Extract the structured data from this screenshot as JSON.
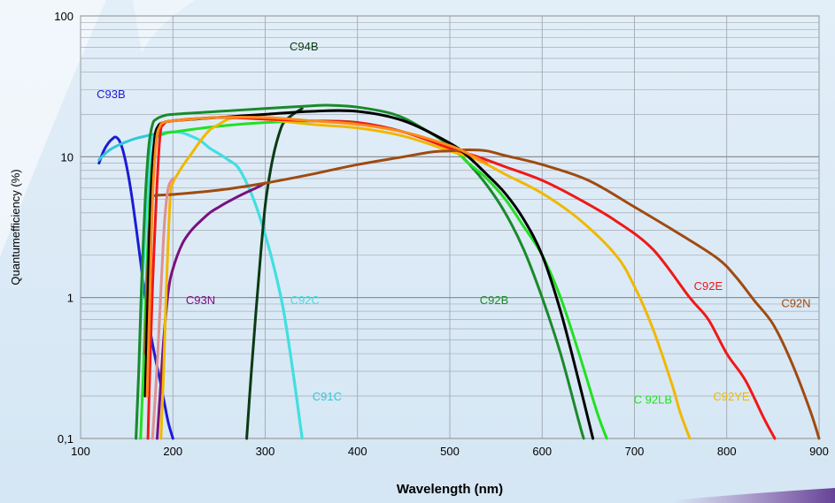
{
  "chart_data": {
    "type": "line",
    "xlabel": "Wavelength (nm)",
    "ylabel": "Quantumefficiency (%)",
    "xlim": [
      100,
      900
    ],
    "ylim": [
      0.1,
      100
    ],
    "yscale": "log",
    "grid": true,
    "x_ticks": [
      "100",
      "200",
      "300",
      "400",
      "500",
      "600",
      "700",
      "800",
      "900"
    ],
    "y_ticks": [
      "0,1",
      "1",
      "10",
      "100"
    ],
    "series": [
      {
        "name": "C93B",
        "color": "#1c1cd4",
        "label_pos": [
          133,
          28
        ],
        "x": [
          120,
          125,
          130,
          135,
          138,
          142,
          146,
          150,
          155,
          160,
          165,
          170,
          175,
          180,
          185,
          190,
          195,
          200
        ],
        "y": [
          9,
          11,
          12.5,
          13.5,
          13.8,
          13,
          11,
          8.5,
          5.5,
          3.2,
          1.8,
          1.0,
          0.6,
          0.4,
          0.28,
          0.19,
          0.13,
          0.1
        ]
      },
      {
        "name": "C91C",
        "color": "#30c8d8",
        "label_pos": [
          367,
          0.2
        ],
        "x": [
          120,
          130,
          140,
          150,
          160,
          170,
          180,
          190,
          200,
          210,
          220,
          230,
          240,
          250,
          260,
          270,
          280,
          290,
          300,
          310,
          320,
          330,
          340
        ],
        "y": [
          9.5,
          11,
          12,
          12.8,
          13.5,
          14,
          14.5,
          14.8,
          15,
          14.8,
          14,
          13,
          11.5,
          10.5,
          9.5,
          8.5,
          6.5,
          4.5,
          2.8,
          1.6,
          0.8,
          0.3,
          0.1
        ]
      },
      {
        "name": "C92C",
        "color": "#40e0e0",
        "label_pos": [
          343,
          0.97
        ],
        "x": [
          160,
          163,
          167,
          172,
          176,
          180,
          185,
          190,
          200,
          210,
          220,
          230,
          240,
          250,
          260,
          270,
          280,
          290,
          300,
          310,
          320,
          330,
          340
        ],
        "y": [
          0.1,
          0.3,
          1.2,
          5,
          12,
          14,
          14.5,
          14.8,
          15,
          14.8,
          14,
          13,
          11.5,
          10.5,
          9.5,
          8.5,
          6.5,
          4.5,
          2.8,
          1.6,
          0.8,
          0.3,
          0.1
        ]
      },
      {
        "name": "C93N",
        "color": "#7a1080",
        "label_pos": [
          230,
          0.97
        ],
        "x": [
          183,
          186,
          190,
          195,
          200,
          210,
          220,
          230,
          240,
          250,
          260,
          270,
          280,
          290,
          300
        ],
        "y": [
          0.1,
          0.2,
          0.5,
          1.1,
          1.6,
          2.4,
          3.0,
          3.5,
          4.0,
          4.4,
          4.8,
          5.2,
          5.6,
          6.0,
          6.5
        ]
      },
      {
        "name": "C94B",
        "color": "#0a3a14",
        "label_pos": [
          342,
          61
        ],
        "x": [
          280,
          285,
          290,
          295,
          300,
          305,
          310,
          315,
          320,
          330,
          340
        ],
        "y": [
          0.1,
          0.3,
          0.8,
          2,
          4.5,
          7.5,
          11,
          14.5,
          17.5,
          20,
          22
        ]
      },
      {
        "name": "C92B",
        "color": "#1a8a2a",
        "label_pos": [
          548,
          0.97
        ],
        "x": [
          160,
          163,
          166,
          170,
          174,
          178,
          182,
          190,
          200,
          250,
          300,
          350,
          370,
          400,
          440,
          470,
          500,
          520,
          540,
          560,
          580,
          600,
          620,
          640,
          645
        ],
        "y": [
          0.1,
          0.3,
          1.2,
          5,
          12,
          17,
          18.5,
          19.5,
          20,
          21,
          22,
          23,
          23.2,
          22.5,
          20,
          16,
          12,
          9,
          6.3,
          4.0,
          2.2,
          1.0,
          0.4,
          0.13,
          0.1
        ]
      },
      {
        "name": "C 92LB",
        "color": "#22e022",
        "label_pos": [
          720,
          0.19
        ],
        "x": [
          165,
          168,
          171,
          175,
          178,
          182,
          190,
          200,
          250,
          300,
          350,
          400,
          450,
          500,
          520,
          540,
          560,
          580,
          600,
          620,
          640,
          660,
          670
        ],
        "y": [
          0.1,
          0.3,
          1.2,
          5,
          10,
          13.5,
          14.5,
          15,
          16.5,
          17.5,
          18,
          17.5,
          15,
          11.5,
          9,
          7,
          5,
          3.2,
          2.0,
          1.0,
          0.4,
          0.15,
          0.1
        ]
      },
      {
        "name": "C92YE",
        "color": "#f0b800",
        "label_pos": [
          805,
          0.2
        ],
        "x": [
          187,
          190,
          193,
          197,
          200,
          205,
          210,
          220,
          230,
          240,
          250,
          260,
          270,
          280,
          300,
          350,
          400,
          450,
          500,
          530,
          560,
          600,
          640,
          680,
          700,
          720,
          740,
          750,
          760
        ],
        "y": [
          0.1,
          0.3,
          1.2,
          5,
          6.5,
          7.5,
          8.5,
          10.5,
          13,
          15.5,
          17,
          18.5,
          19,
          19,
          18.5,
          17,
          16,
          14,
          11,
          9.5,
          7.5,
          5.5,
          3.6,
          2.0,
          1.2,
          0.6,
          0.25,
          0.15,
          0.1
        ]
      },
      {
        "name": "C92E",
        "color": "#f01818",
        "label_pos": [
          780,
          1.22
        ],
        "x": [
          173,
          175,
          178,
          182,
          186,
          190,
          200,
          250,
          300,
          350,
          400,
          450,
          500,
          530,
          560,
          600,
          640,
          680,
          720,
          760,
          780,
          800,
          820,
          840,
          852
        ],
        "y": [
          0.1,
          0.3,
          1.2,
          5,
          14,
          17,
          18,
          19,
          18.5,
          18,
          17.5,
          15,
          11.5,
          10,
          8.5,
          6.8,
          5.0,
          3.5,
          2.2,
          1.0,
          0.7,
          0.4,
          0.26,
          0.14,
          0.1
        ]
      },
      {
        "name": "C92N",
        "color": "#a04a10",
        "label_pos": [
          875,
          0.92
        ],
        "x": [
          170,
          172,
          174,
          176,
          178,
          180,
          200,
          250,
          300,
          350,
          400,
          450,
          480,
          500,
          520,
          540,
          560,
          600,
          650,
          700,
          750,
          790,
          810,
          830,
          850,
          870,
          890,
          900
        ],
        "y": [
          0.4,
          1.2,
          2.6,
          4.2,
          5.0,
          5.3,
          5.4,
          5.8,
          6.5,
          7.5,
          8.8,
          10,
          10.8,
          11,
          11.2,
          11,
          10.2,
          8.8,
          6.8,
          4.4,
          2.8,
          1.9,
          1.4,
          0.95,
          0.65,
          0.35,
          0.16,
          0.1
        ]
      },
      {
        "name": "",
        "color": "#000000",
        "x": [
          170,
          173,
          176,
          180,
          184,
          190,
          200,
          250,
          300,
          350,
          400,
          450,
          500,
          520,
          540,
          560,
          580,
          600,
          620,
          640,
          655
        ],
        "y": [
          0.2,
          1.0,
          5,
          13,
          16.5,
          17.5,
          18,
          19,
          20,
          21,
          21,
          18,
          12.5,
          10,
          7.5,
          5.5,
          3.6,
          2.0,
          0.8,
          0.25,
          0.1
        ]
      },
      {
        "name": "",
        "color": "#ff8a1a",
        "x": [
          172,
          175,
          178,
          182,
          186,
          190,
          200,
          250,
          300,
          350,
          400,
          450,
          500,
          520,
          540
        ],
        "y": [
          0.2,
          1.0,
          5,
          13,
          16.5,
          17.5,
          18,
          19,
          19,
          18,
          17,
          15,
          12,
          10.5,
          9
        ]
      },
      {
        "name": "",
        "color": "#e09090",
        "x": [
          178,
          181,
          185,
          188,
          191,
          195,
          200
        ],
        "y": [
          0.1,
          0.2,
          0.6,
          1.5,
          3.5,
          6,
          7
        ]
      }
    ]
  }
}
